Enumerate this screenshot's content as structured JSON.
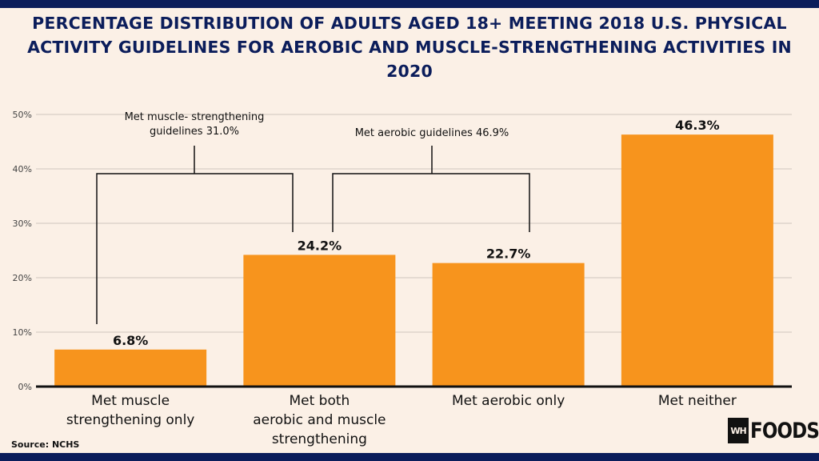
{
  "title": "PERCENTAGE DISTRIBUTION OF ADULTS AGED 18+ MEETING 2018 U.S. PHYSICAL ACTIVITY GUIDELINES FOR AEROBIC AND MUSCLE-STRENGTHENING ACTIVITIES IN 2020",
  "source": "Source: NCHS",
  "logo": {
    "mark": "WH",
    "text": "FOODS"
  },
  "colors": {
    "bar": "#f7941d",
    "title": "#0b1d5b",
    "grid": "#cfc6bd",
    "axis": "#111111"
  },
  "chart_data": {
    "type": "bar",
    "categories": [
      [
        "Met muscle",
        "strengthening only"
      ],
      [
        "Met both",
        "aerobic and muscle",
        "strengthening"
      ],
      [
        "Met aerobic only"
      ],
      [
        "Met neither"
      ]
    ],
    "values": [
      6.8,
      24.2,
      22.7,
      46.3
    ],
    "data_labels": [
      "6.8%",
      "24.2%",
      "22.7%",
      "46.3%"
    ],
    "ylim": [
      0,
      50
    ],
    "yticks": [
      "0%",
      "10%",
      "20%",
      "30%",
      "40%",
      "50%"
    ],
    "grid": true,
    "annotations": [
      {
        "lines": [
          "Met muscle- strengthening",
          "guidelines 31.0%"
        ],
        "spans": [
          0,
          1
        ]
      },
      {
        "lines": [
          "Met aerobic guidelines 46.9%"
        ],
        "spans": [
          1,
          2
        ]
      }
    ]
  }
}
